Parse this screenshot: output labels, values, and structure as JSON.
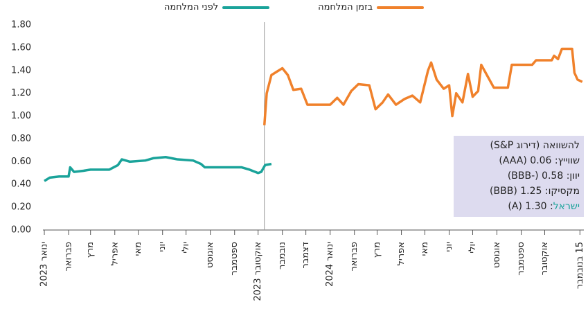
{
  "chart_data": {
    "type": "line",
    "ylim": [
      0,
      1.8
    ],
    "yticks": [
      {
        "value": 0,
        "label": "0.00"
      },
      {
        "value": 0.2,
        "label": "0.20"
      },
      {
        "value": 0.4,
        "label": "0.40"
      },
      {
        "value": 0.6,
        "label": "0.60"
      },
      {
        "value": 0.8,
        "label": "0.80"
      },
      {
        "value": 1,
        "label": "1.00"
      },
      {
        "value": 1.2,
        "label": "1.20"
      },
      {
        "value": 1.4,
        "label": "1.40"
      },
      {
        "value": 1.6,
        "label": "1.60"
      },
      {
        "value": 1.8,
        "label": "1.80"
      }
    ],
    "xlim": [
      "2023-01-01",
      "2024-11-20"
    ],
    "xticks": [
      {
        "value": "2023-01-01",
        "label": "ינואר 2023"
      },
      {
        "value": "2023-02-01",
        "label": "פברואר"
      },
      {
        "value": "2023-03-01",
        "label": "מרץ"
      },
      {
        "value": "2023-04-01",
        "label": "אפריל"
      },
      {
        "value": "2023-05-01",
        "label": "מאי"
      },
      {
        "value": "2023-06-01",
        "label": "יוני"
      },
      {
        "value": "2023-07-01",
        "label": "יולי"
      },
      {
        "value": "2023-08-01",
        "label": "אוגוסט"
      },
      {
        "value": "2023-09-01",
        "label": "ספטמבר"
      },
      {
        "value": "2023-10-01",
        "label": "אוקטובר 2023"
      },
      {
        "value": "2023-11-01",
        "label": "נובמבר"
      },
      {
        "value": "2023-12-01",
        "label": "דצמבר"
      },
      {
        "value": "2024-01-01",
        "label": "ינואר 2024"
      },
      {
        "value": "2024-02-01",
        "label": "פברואר"
      },
      {
        "value": "2024-03-01",
        "label": "מרץ"
      },
      {
        "value": "2024-04-01",
        "label": "אפריל"
      },
      {
        "value": "2024-05-01",
        "label": "מאי"
      },
      {
        "value": "2024-06-01",
        "label": "יוני"
      },
      {
        "value": "2024-07-01",
        "label": "יולי"
      },
      {
        "value": "2024-08-01",
        "label": "אוגוסט"
      },
      {
        "value": "2024-09-01",
        "label": "ספטמבר"
      },
      {
        "value": "2024-10-01",
        "label": "אוקטובר"
      },
      {
        "value": "2024-11-15",
        "label": "15 בנובמבר"
      }
    ],
    "series": [
      {
        "name": "לפני המלחמה",
        "color": "#1aa39a",
        "x": [
          "2023-01-01",
          "2023-01-08",
          "2023-01-20",
          "2023-02-01",
          "2023-02-03",
          "2023-02-08",
          "2023-02-20",
          "2023-03-01",
          "2023-03-25",
          "2023-04-05",
          "2023-04-10",
          "2023-04-20",
          "2023-05-10",
          "2023-05-20",
          "2023-06-05",
          "2023-06-20",
          "2023-07-10",
          "2023-07-20",
          "2023-07-25",
          "2023-08-20",
          "2023-09-10",
          "2023-09-20",
          "2023-10-01",
          "2023-10-05",
          "2023-10-10",
          "2023-10-18"
        ],
        "values": [
          0.43,
          0.46,
          0.47,
          0.47,
          0.55,
          0.51,
          0.52,
          0.53,
          0.53,
          0.57,
          0.62,
          0.6,
          0.61,
          0.63,
          0.64,
          0.62,
          0.61,
          0.58,
          0.55,
          0.55,
          0.55,
          0.53,
          0.5,
          0.51,
          0.57,
          0.58
        ]
      },
      {
        "name": "בזמן המלחמה",
        "color": "#f0812b",
        "x": [
          "2023-10-09",
          "2023-10-12",
          "2023-10-18",
          "2023-10-25",
          "2023-11-01",
          "2023-11-08",
          "2023-11-15",
          "2023-11-25",
          "2023-12-03",
          "2023-12-15",
          "2024-01-01",
          "2024-01-10",
          "2024-01-18",
          "2024-01-28",
          "2024-02-06",
          "2024-02-20",
          "2024-02-28",
          "2024-03-08",
          "2024-03-15",
          "2024-03-25",
          "2024-04-05",
          "2024-04-15",
          "2024-04-25",
          "2024-05-05",
          "2024-05-09",
          "2024-05-16",
          "2024-05-25",
          "2024-06-01",
          "2024-06-05",
          "2024-06-10",
          "2024-06-18",
          "2024-06-25",
          "2024-07-01",
          "2024-07-08",
          "2024-07-12",
          "2024-07-20",
          "2024-07-28",
          "2024-08-15",
          "2024-08-20",
          "2024-09-15",
          "2024-09-20",
          "2024-10-10",
          "2024-10-13",
          "2024-10-18",
          "2024-10-23",
          "2024-11-05",
          "2024-11-08",
          "2024-11-12",
          "2024-11-18"
        ],
        "values": [
          0.92,
          1.2,
          1.36,
          1.39,
          1.42,
          1.36,
          1.23,
          1.24,
          1.1,
          1.1,
          1.1,
          1.16,
          1.1,
          1.22,
          1.28,
          1.27,
          1.06,
          1.12,
          1.19,
          1.1,
          1.15,
          1.18,
          1.12,
          1.4,
          1.47,
          1.32,
          1.24,
          1.27,
          1.0,
          1.2,
          1.12,
          1.37,
          1.17,
          1.22,
          1.45,
          1.35,
          1.25,
          1.25,
          1.45,
          1.45,
          1.49,
          1.49,
          1.53,
          1.5,
          1.59,
          1.59,
          1.38,
          1.32,
          1.3
        ]
      }
    ],
    "annotation": {
      "lines": [
        "להשוואה (דירוג S&P)",
        "שווייץ: 0.06 (AAA)",
        "יוון: 0.58 (-BBB)",
        "מקסיקו: 1.25 (BBB)"
      ],
      "highlight": {
        "label": "ישראל",
        "text": ": 1.30 (A)",
        "color": "#1aa39a"
      }
    }
  }
}
